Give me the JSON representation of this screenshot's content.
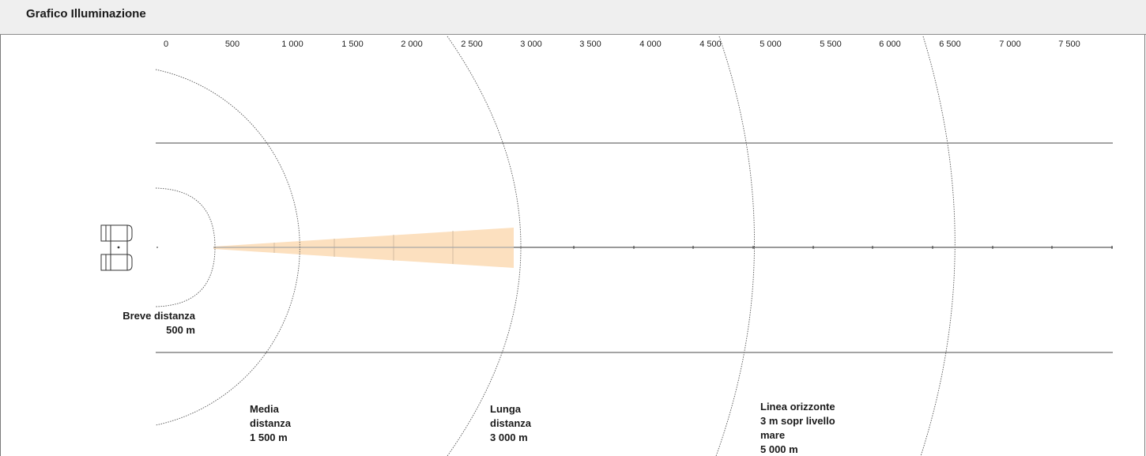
{
  "header": {
    "title": "Grafico Illuminazione"
  },
  "scale": {
    "ticks": [
      "0",
      "500",
      "1 000",
      "1 500",
      "2 000",
      "2 500",
      "3 000",
      "3 500",
      "4 000",
      "4 500",
      "5 000",
      "5 500",
      "6 000",
      "6 500",
      "7 000",
      "7 500"
    ]
  },
  "ranges": [
    {
      "id": "short",
      "lines": [
        "Breve distanza",
        "500 m"
      ]
    },
    {
      "id": "medium",
      "lines": [
        "Media",
        "distanza",
        "1 500 m"
      ]
    },
    {
      "id": "long",
      "lines": [
        "Lunga",
        "distanza",
        "3 000 m"
      ]
    },
    {
      "id": "horizon",
      "lines": [
        "Linea orizzonte",
        "3 m sopr livello",
        "mare",
        "5 000 m"
      ]
    }
  ],
  "colors": {
    "beam": "#fce0bf",
    "lines": "#4a4a4a",
    "arcs": "#555555"
  }
}
